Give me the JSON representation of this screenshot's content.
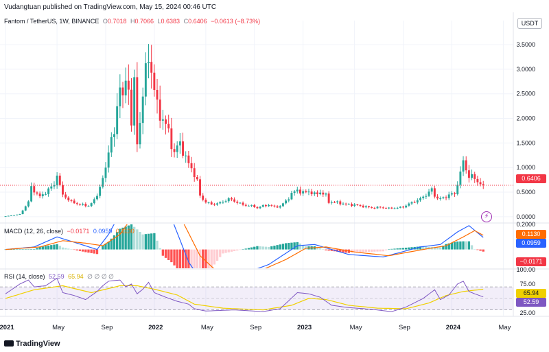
{
  "header": {
    "publisher": "Vudangtuan published on TradingView.com, May 15, 2024 00:46 UTC"
  },
  "legend": {
    "symbol": "Fantom / TetherUS, 1W, BINANCE",
    "o_label": "O",
    "o": "0.7018",
    "h_label": "H",
    "h": "0.7066",
    "l_label": "L",
    "l": "0.6383",
    "c_label": "C",
    "c": "0.6406",
    "change": "−0.0613 (−8.73%)"
  },
  "currency_badge": "USDT",
  "macd": {
    "title": "MACD (12, 26, close)",
    "hist": "−0.0171",
    "macd_val": "0.0959",
    "signal_val": "0.1130",
    "axis_labels": [
      "0.2000",
      "0.1000"
    ]
  },
  "rsi": {
    "title": "RSI (14, close)",
    "rsi_val": "52.59",
    "ma_val": "65.94",
    "extras": "∅ ∅ ∅ ∅",
    "axis_labels": [
      "100.00",
      "75.00",
      "25.00"
    ]
  },
  "footer": {
    "brand": "TradingView"
  },
  "colors": {
    "up": "#26a69a",
    "down": "#f23645",
    "macd": "#2962ff",
    "signal": "#ff6d00",
    "rsi": "#7e57c2",
    "rsi_ma": "#f0d000",
    "grid": "#f0f3fa"
  },
  "chart_data": {
    "type": "candlestick",
    "price_axis": {
      "ticks": [
        0,
        0.5,
        1,
        1.5,
        2,
        2.5,
        3,
        3.5
      ],
      "tick_labels": [
        "0.0000",
        "0.5000",
        "1.0000",
        "1.5000",
        "2.0000",
        "2.5000",
        "3.0000",
        "3.5000"
      ],
      "range": [
        -0.1,
        3.85
      ],
      "last_price": "0.6406"
    },
    "time_axis": {
      "labels": [
        "2021",
        "May",
        "Sep",
        "2022",
        "May",
        "Sep",
        "2023",
        "May",
        "Sep",
        "2024",
        "May"
      ],
      "bold": [
        true,
        false,
        false,
        true,
        false,
        false,
        true,
        false,
        false,
        true,
        false
      ],
      "weeks": [
        0,
        18,
        35,
        52,
        70,
        87,
        104,
        122,
        139,
        156,
        174
      ]
    },
    "anchors": [
      [
        0,
        0.01
      ],
      [
        5,
        0.05
      ],
      [
        8,
        0.3
      ],
      [
        9,
        0.6
      ],
      [
        12,
        0.4
      ],
      [
        15,
        0.55
      ],
      [
        17,
        0.65
      ],
      [
        18,
        0.9
      ],
      [
        19,
        0.6
      ],
      [
        20,
        0.45
      ],
      [
        23,
        0.3
      ],
      [
        26,
        0.25
      ],
      [
        29,
        0.22
      ],
      [
        31,
        0.33
      ],
      [
        33,
        0.6
      ],
      [
        35,
        0.95
      ],
      [
        36,
        1.45
      ],
      [
        38,
        1.65
      ],
      [
        39,
        2.2
      ],
      [
        40,
        2.9
      ],
      [
        41,
        2.3
      ],
      [
        42,
        2.75
      ],
      [
        43,
        2.6
      ],
      [
        44,
        2.0
      ],
      [
        45,
        2.6
      ],
      [
        46,
        1.5
      ],
      [
        47,
        1.95
      ],
      [
        48,
        2.55
      ],
      [
        49,
        2.85
      ],
      [
        50,
        3.3
      ],
      [
        51,
        3.0
      ],
      [
        52,
        2.6
      ],
      [
        53,
        2.2
      ],
      [
        55,
        2.0
      ],
      [
        57,
        1.7
      ],
      [
        59,
        1.3
      ],
      [
        61,
        1.5
      ],
      [
        63,
        1.2
      ],
      [
        64,
        1.05
      ],
      [
        65,
        1.0
      ],
      [
        67,
        0.72
      ],
      [
        68,
        0.42
      ],
      [
        70,
        0.3
      ],
      [
        72,
        0.25
      ],
      [
        75,
        0.28
      ],
      [
        78,
        0.36
      ],
      [
        80,
        0.32
      ],
      [
        83,
        0.24
      ],
      [
        86,
        0.22
      ],
      [
        88,
        0.18
      ],
      [
        90,
        0.22
      ],
      [
        92,
        0.24
      ],
      [
        94,
        0.2
      ],
      [
        96,
        0.21
      ],
      [
        98,
        0.32
      ],
      [
        100,
        0.46
      ],
      [
        102,
        0.55
      ],
      [
        104,
        0.48
      ],
      [
        106,
        0.52
      ],
      [
        108,
        0.45
      ],
      [
        110,
        0.5
      ],
      [
        112,
        0.43
      ],
      [
        113,
        0.3
      ],
      [
        116,
        0.29
      ],
      [
        119,
        0.25
      ],
      [
        122,
        0.24
      ],
      [
        125,
        0.21
      ],
      [
        128,
        0.18
      ],
      [
        131,
        0.19
      ],
      [
        134,
        0.17
      ],
      [
        137,
        0.18
      ],
      [
        139,
        0.2
      ],
      [
        141,
        0.26
      ],
      [
        143,
        0.31
      ],
      [
        145,
        0.36
      ],
      [
        147,
        0.45
      ],
      [
        149,
        0.55
      ],
      [
        150,
        0.42
      ],
      [
        152,
        0.36
      ],
      [
        154,
        0.4
      ],
      [
        155,
        0.46
      ],
      [
        157,
        0.45
      ],
      [
        158,
        0.7
      ],
      [
        159,
        0.9
      ],
      [
        160,
        1.1
      ],
      [
        161,
        0.95
      ],
      [
        162,
        0.85
      ],
      [
        163,
        0.82
      ],
      [
        164,
        0.75
      ],
      [
        165,
        0.72
      ],
      [
        166,
        0.7
      ],
      [
        167,
        0.64
      ]
    ],
    "macd": {
      "macd_line": [
        [
          0,
          0
        ],
        [
          10,
          0.02
        ],
        [
          18,
          0.1
        ],
        [
          25,
          0.05
        ],
        [
          32,
          0.0
        ],
        [
          36,
          0.12
        ],
        [
          44,
          0.45
        ],
        [
          52,
          0.55
        ],
        [
          58,
          0.25
        ],
        [
          64,
          -0.1
        ],
        [
          70,
          -0.3
        ],
        [
          80,
          -0.22
        ],
        [
          92,
          -0.12
        ],
        [
          102,
          0.03
        ],
        [
          108,
          0.04
        ],
        [
          120,
          -0.04
        ],
        [
          132,
          -0.06
        ],
        [
          145,
          0.02
        ],
        [
          152,
          0.04
        ],
        [
          158,
          0.14
        ],
        [
          162,
          0.19
        ],
        [
          167,
          0.0959
        ]
      ],
      "signal_line": [
        [
          0,
          0
        ],
        [
          12,
          0.02
        ],
        [
          20,
          0.07
        ],
        [
          28,
          0.05
        ],
        [
          34,
          0.03
        ],
        [
          40,
          0.12
        ],
        [
          48,
          0.38
        ],
        [
          55,
          0.45
        ],
        [
          62,
          0.22
        ],
        [
          68,
          -0.05
        ],
        [
          76,
          -0.22
        ],
        [
          88,
          -0.18
        ],
        [
          98,
          -0.08
        ],
        [
          105,
          0.01
        ],
        [
          112,
          0.02
        ],
        [
          122,
          -0.02
        ],
        [
          134,
          -0.05
        ],
        [
          146,
          0.0
        ],
        [
          154,
          0.03
        ],
        [
          160,
          0.1
        ],
        [
          164,
          0.15
        ],
        [
          167,
          0.113
        ]
      ],
      "range": [
        -0.15,
        0.2
      ]
    },
    "rsi": {
      "rsi_line": [
        [
          0,
          58
        ],
        [
          5,
          75
        ],
        [
          8,
          82
        ],
        [
          10,
          70
        ],
        [
          14,
          72
        ],
        [
          17,
          82
        ],
        [
          18,
          85
        ],
        [
          20,
          60
        ],
        [
          24,
          55
        ],
        [
          28,
          48
        ],
        [
          32,
          62
        ],
        [
          34,
          72
        ],
        [
          36,
          80
        ],
        [
          40,
          82
        ],
        [
          42,
          70
        ],
        [
          44,
          75
        ],
        [
          46,
          58
        ],
        [
          48,
          66
        ],
        [
          50,
          78
        ],
        [
          52,
          60
        ],
        [
          56,
          52
        ],
        [
          60,
          45
        ],
        [
          64,
          40
        ],
        [
          66,
          32
        ],
        [
          70,
          28
        ],
        [
          80,
          30
        ],
        [
          90,
          27
        ],
        [
          96,
          32
        ],
        [
          102,
          60
        ],
        [
          106,
          58
        ],
        [
          110,
          52
        ],
        [
          114,
          38
        ],
        [
          120,
          34
        ],
        [
          128,
          31
        ],
        [
          135,
          27
        ],
        [
          140,
          35
        ],
        [
          146,
          50
        ],
        [
          150,
          65
        ],
        [
          152,
          48
        ],
        [
          155,
          56
        ],
        [
          158,
          75
        ],
        [
          160,
          80
        ],
        [
          162,
          62
        ],
        [
          164,
          58
        ],
        [
          167,
          52.59
        ]
      ],
      "ma_line": [
        [
          0,
          50
        ],
        [
          10,
          65
        ],
        [
          20,
          72
        ],
        [
          30,
          60
        ],
        [
          40,
          72
        ],
        [
          46,
          72
        ],
        [
          52,
          66
        ],
        [
          60,
          56
        ],
        [
          66,
          40
        ],
        [
          76,
          33
        ],
        [
          90,
          30
        ],
        [
          100,
          38
        ],
        [
          106,
          50
        ],
        [
          112,
          48
        ],
        [
          120,
          38
        ],
        [
          130,
          33
        ],
        [
          140,
          32
        ],
        [
          148,
          42
        ],
        [
          154,
          55
        ],
        [
          160,
          62
        ],
        [
          167,
          65.94
        ]
      ],
      "overbought": 70,
      "oversold": 30,
      "range": [
        20,
        100
      ]
    }
  }
}
